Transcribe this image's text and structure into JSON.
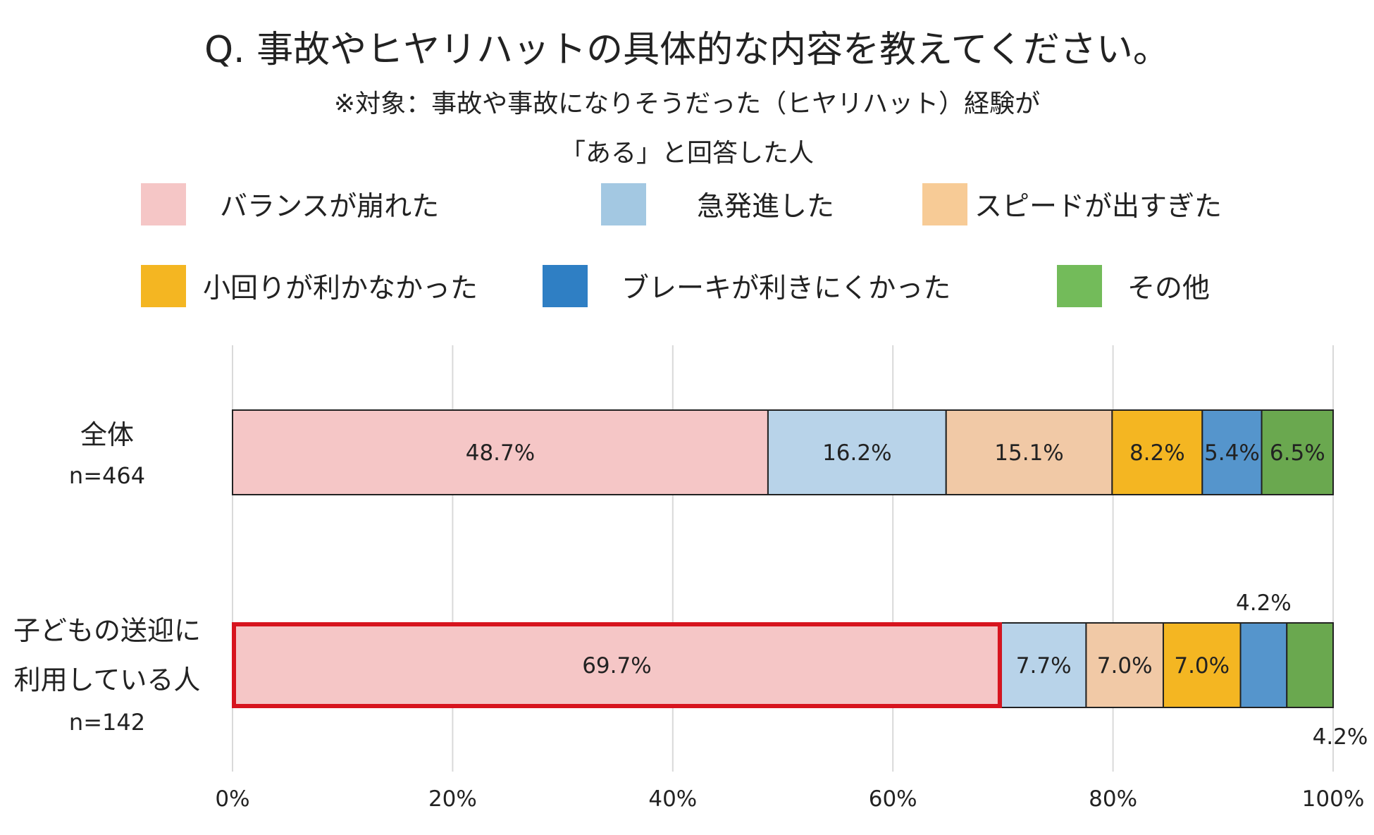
{
  "chart_data": {
    "type": "bar",
    "orientation": "horizontal",
    "stacked": true,
    "title": "Q. 事故やヒヤリハットの具体的な内容を教えてください。",
    "subtitle_line1": "※対象：事故や事故になりそうだった（ヒヤリハット）経験が",
    "subtitle_line2": "「ある」と回答した人",
    "categories": [
      {
        "label_lines": [
          "全体"
        ],
        "n": "n=464"
      },
      {
        "label_lines": [
          "子どもの送迎に",
          "利用している人"
        ],
        "n": "n=142"
      }
    ],
    "series": [
      {
        "name": "バランスが崩れた",
        "color": "#F5C6C6",
        "values": [
          48.7,
          69.7
        ],
        "labels": [
          "48.7%",
          "69.7%"
        ]
      },
      {
        "name": "急発進した",
        "color": "#B8D3E9",
        "values": [
          16.2,
          7.7
        ],
        "labels": [
          "16.2%",
          "7.7%"
        ]
      },
      {
        "name": "スピードが出すぎた",
        "color": "#F1C9A6",
        "values": [
          15.1,
          7.0
        ],
        "labels": [
          "15.1%",
          "7.0%"
        ]
      },
      {
        "name": "小回りが利かなかった",
        "color": "#F4B622",
        "values": [
          8.2,
          7.0
        ],
        "labels": [
          "8.2%",
          "7.0%"
        ]
      },
      {
        "name": "ブレーキが利きにくかった",
        "color": "#5595CC",
        "values": [
          5.4,
          4.2
        ],
        "labels": [
          "5.4%",
          "4.2%"
        ]
      },
      {
        "name": "その他",
        "color": "#6AA84F",
        "values": [
          6.5,
          4.2
        ],
        "labels": [
          "6.5%",
          "4.2%"
        ]
      }
    ],
    "legend_colors": [
      "#F5C6C6",
      "#A3C8E2",
      "#F7CB96",
      "#F4B622",
      "#2F7FC4",
      "#73BB5A"
    ],
    "highlight": {
      "category": 1,
      "series": 0,
      "color": "#D7141E"
    },
    "xlim": [
      0,
      100
    ],
    "xticks": [
      "0%",
      "20%",
      "40%",
      "60%",
      "80%",
      "100%"
    ],
    "grid": true,
    "legend_position": "top"
  }
}
